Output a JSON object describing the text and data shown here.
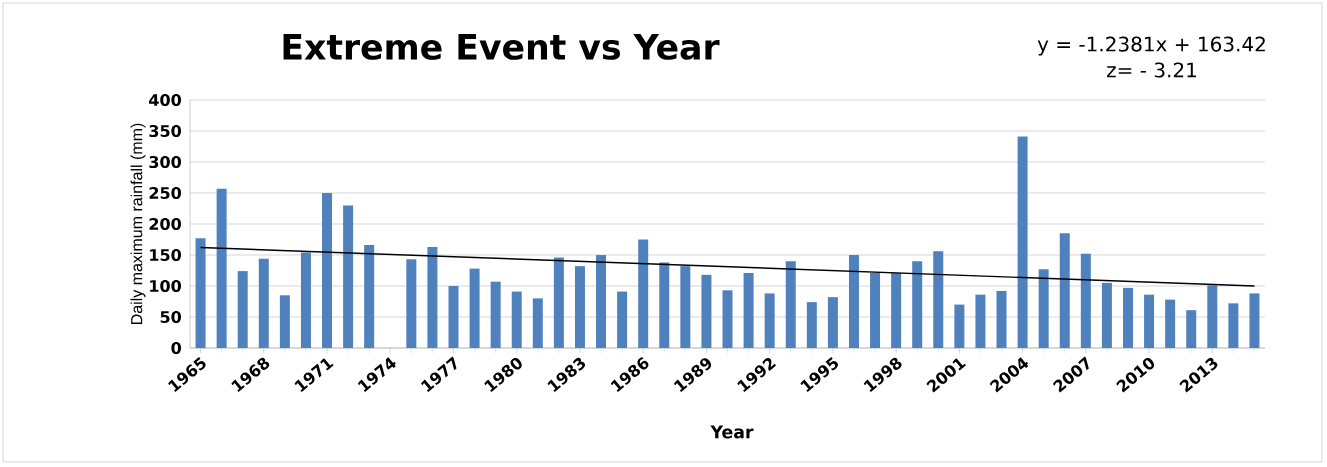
{
  "chart_data": {
    "type": "bar",
    "title": "Extreme Event vs Year",
    "xlabel": "Year",
    "ylabel": "Daily maximum rainfall (mm)",
    "annotations": [
      "y = -1.2381x + 163.42",
      "z= -  3.21"
    ],
    "categories": [
      "1965",
      null,
      null,
      "1968",
      null,
      null,
      "1971",
      null,
      null,
      "1974",
      null,
      null,
      "1977",
      null,
      null,
      "1980",
      null,
      null,
      "1983",
      null,
      null,
      "1986",
      null,
      null,
      "1989",
      null,
      null,
      "1992",
      null,
      null,
      "1995",
      null,
      null,
      "1998",
      null,
      null,
      "2001",
      null,
      null,
      "2004",
      null,
      null,
      "2007",
      null,
      null,
      "2010",
      null,
      null,
      "2013",
      null,
      null
    ],
    "series": [
      {
        "color": "#4f81bd",
        "values": [
          177,
          257,
          124,
          144,
          85,
          154,
          250,
          230,
          166,
          null,
          143,
          163,
          100,
          128,
          107,
          91,
          80,
          146,
          132,
          150,
          91,
          175,
          138,
          132,
          118,
          93,
          121,
          88,
          140,
          74,
          82,
          150,
          121,
          121,
          140,
          156,
          70,
          86,
          92,
          341,
          127,
          185,
          152,
          105,
          97,
          86,
          78,
          61,
          101,
          72,
          88
        ]
      },
      {
        "type": "line",
        "color": "#000000",
        "values": [
          162,
          null,
          null,
          null,
          null,
          null,
          null,
          null,
          null,
          null,
          null,
          null,
          null,
          null,
          null,
          null,
          null,
          null,
          null,
          null,
          null,
          null,
          null,
          null,
          null,
          null,
          null,
          null,
          null,
          null,
          null,
          null,
          null,
          null,
          null,
          null,
          null,
          null,
          null,
          null,
          null,
          null,
          null,
          null,
          null,
          null,
          null,
          null,
          null,
          null,
          100
        ]
      }
    ],
    "ylim": [
      0,
      400
    ],
    "yticks": [
      0,
      50,
      100,
      150,
      200,
      250,
      300,
      350,
      400
    ],
    "grid": "y"
  }
}
